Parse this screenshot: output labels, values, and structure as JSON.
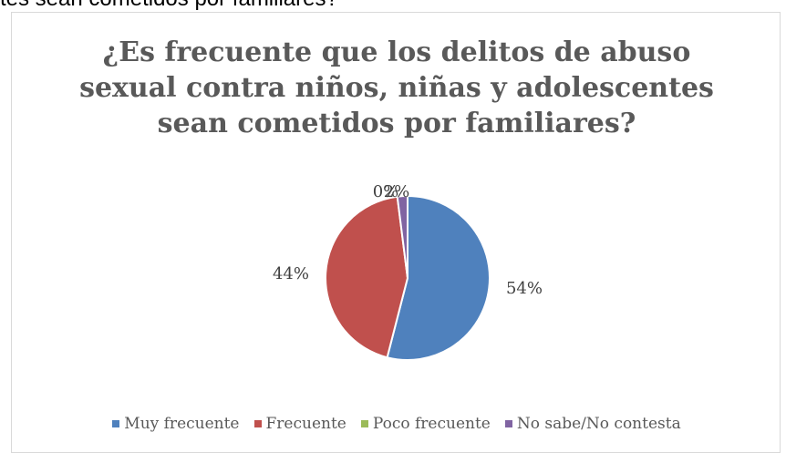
{
  "caption": "tes sean cometidos por familiares?",
  "chart_data": {
    "type": "pie",
    "title_lines": [
      "¿Es frecuente que los delitos de abuso",
      "sexual contra niños, niñas y adolescentes",
      "sean cometidos por familiares?"
    ],
    "categories": [
      "Muy frecuente",
      "Frecuente",
      "Poco frecuente",
      "No sabe/No contesta"
    ],
    "values": [
      54,
      44,
      0,
      2
    ],
    "data_labels": [
      "54%",
      "44%",
      "0%",
      "2%"
    ],
    "colors": [
      "#4f81bd",
      "#c0504d",
      "#9bbb59",
      "#8064a2"
    ],
    "legend_position": "bottom",
    "start_angle_deg": 0,
    "direction": "clockwise"
  }
}
